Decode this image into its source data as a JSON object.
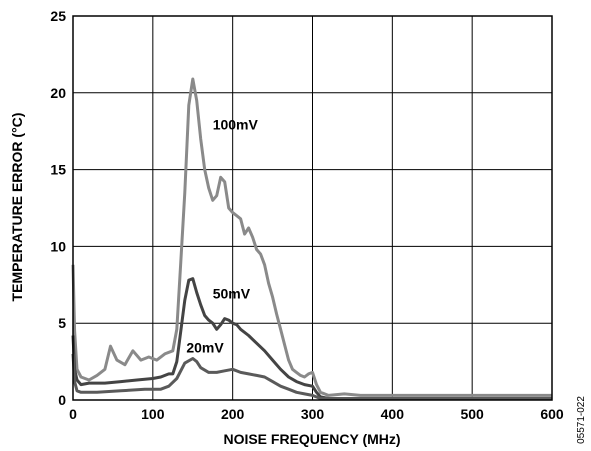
{
  "chart_data": {
    "type": "line",
    "title": "",
    "xlabel": "NOISE FREQUENCY (MHz)",
    "ylabel": "TEMPERATURE ERROR (°C)",
    "xlim": [
      0,
      600
    ],
    "ylim": [
      0,
      25
    ],
    "xticks": [
      0,
      100,
      200,
      300,
      400,
      500,
      600
    ],
    "yticks": [
      0,
      5,
      10,
      15,
      20,
      25
    ],
    "grid": true,
    "figure_code": "05571-022",
    "series": [
      {
        "name": "100mV",
        "color": "#8a8a8a",
        "label_at": [
          175,
          17.6
        ],
        "points": [
          [
            0,
            8.8
          ],
          [
            2,
            4.5
          ],
          [
            5,
            2.0
          ],
          [
            10,
            1.5
          ],
          [
            20,
            1.3
          ],
          [
            30,
            1.6
          ],
          [
            40,
            2.0
          ],
          [
            47,
            3.5
          ],
          [
            55,
            2.6
          ],
          [
            65,
            2.3
          ],
          [
            75,
            3.2
          ],
          [
            85,
            2.6
          ],
          [
            95,
            2.8
          ],
          [
            105,
            2.6
          ],
          [
            115,
            3.0
          ],
          [
            125,
            3.2
          ],
          [
            130,
            4.6
          ],
          [
            135,
            9.0
          ],
          [
            140,
            13.5
          ],
          [
            145,
            19.2
          ],
          [
            150,
            20.9
          ],
          [
            155,
            19.5
          ],
          [
            160,
            17.0
          ],
          [
            165,
            15.0
          ],
          [
            170,
            13.8
          ],
          [
            175,
            13.0
          ],
          [
            180,
            13.3
          ],
          [
            185,
            14.5
          ],
          [
            190,
            14.2
          ],
          [
            195,
            12.5
          ],
          [
            200,
            12.2
          ],
          [
            205,
            12.0
          ],
          [
            210,
            11.8
          ],
          [
            215,
            10.8
          ],
          [
            220,
            11.2
          ],
          [
            225,
            10.6
          ],
          [
            230,
            9.8
          ],
          [
            235,
            9.5
          ],
          [
            240,
            8.8
          ],
          [
            245,
            7.6
          ],
          [
            250,
            6.7
          ],
          [
            255,
            5.6
          ],
          [
            260,
            4.6
          ],
          [
            265,
            3.6
          ],
          [
            270,
            2.6
          ],
          [
            275,
            2.0
          ],
          [
            280,
            1.8
          ],
          [
            285,
            1.6
          ],
          [
            290,
            1.5
          ],
          [
            295,
            1.7
          ],
          [
            300,
            1.8
          ],
          [
            305,
            1.0
          ],
          [
            310,
            0.5
          ],
          [
            320,
            0.3
          ],
          [
            340,
            0.4
          ],
          [
            360,
            0.3
          ],
          [
            400,
            0.3
          ],
          [
            450,
            0.3
          ],
          [
            500,
            0.3
          ],
          [
            560,
            0.3
          ],
          [
            600,
            0.3
          ]
        ]
      },
      {
        "name": "50mV",
        "color": "#444444",
        "label_at": [
          175,
          6.6
        ],
        "points": [
          [
            0,
            4.2
          ],
          [
            2,
            2.0
          ],
          [
            5,
            1.3
          ],
          [
            10,
            1.0
          ],
          [
            20,
            1.1
          ],
          [
            40,
            1.1
          ],
          [
            60,
            1.2
          ],
          [
            80,
            1.3
          ],
          [
            100,
            1.4
          ],
          [
            110,
            1.5
          ],
          [
            120,
            1.7
          ],
          [
            125,
            1.7
          ],
          [
            130,
            2.5
          ],
          [
            135,
            4.5
          ],
          [
            140,
            6.5
          ],
          [
            145,
            7.8
          ],
          [
            150,
            7.9
          ],
          [
            155,
            7.0
          ],
          [
            160,
            6.2
          ],
          [
            165,
            5.5
          ],
          [
            170,
            5.2
          ],
          [
            175,
            5.0
          ],
          [
            180,
            4.6
          ],
          [
            185,
            4.9
          ],
          [
            190,
            5.3
          ],
          [
            195,
            5.2
          ],
          [
            200,
            5.0
          ],
          [
            205,
            4.9
          ],
          [
            210,
            4.6
          ],
          [
            220,
            4.2
          ],
          [
            230,
            3.7
          ],
          [
            240,
            3.2
          ],
          [
            250,
            2.6
          ],
          [
            260,
            2.0
          ],
          [
            270,
            1.5
          ],
          [
            280,
            1.2
          ],
          [
            290,
            1.0
          ],
          [
            300,
            0.9
          ],
          [
            305,
            0.5
          ],
          [
            310,
            0.2
          ],
          [
            320,
            0.1
          ],
          [
            400,
            0.1
          ],
          [
            500,
            0.1
          ],
          [
            600,
            0.1
          ]
        ]
      },
      {
        "name": "20mV",
        "color": "#5a5a5a",
        "label_at": [
          142,
          3.1
        ],
        "points": [
          [
            0,
            3.0
          ],
          [
            2,
            1.2
          ],
          [
            5,
            0.6
          ],
          [
            10,
            0.5
          ],
          [
            30,
            0.5
          ],
          [
            60,
            0.6
          ],
          [
            90,
            0.7
          ],
          [
            110,
            0.7
          ],
          [
            120,
            0.9
          ],
          [
            130,
            1.4
          ],
          [
            140,
            2.4
          ],
          [
            150,
            2.7
          ],
          [
            155,
            2.5
          ],
          [
            160,
            2.1
          ],
          [
            170,
            1.8
          ],
          [
            180,
            1.8
          ],
          [
            190,
            1.9
          ],
          [
            200,
            2.0
          ],
          [
            210,
            1.8
          ],
          [
            220,
            1.7
          ],
          [
            230,
            1.6
          ],
          [
            240,
            1.5
          ],
          [
            250,
            1.2
          ],
          [
            260,
            0.9
          ],
          [
            270,
            0.7
          ],
          [
            280,
            0.5
          ],
          [
            290,
            0.4
          ],
          [
            300,
            0.3
          ],
          [
            310,
            0.1
          ],
          [
            400,
            0.1
          ],
          [
            500,
            0.1
          ],
          [
            600,
            0.1
          ]
        ]
      }
    ]
  }
}
